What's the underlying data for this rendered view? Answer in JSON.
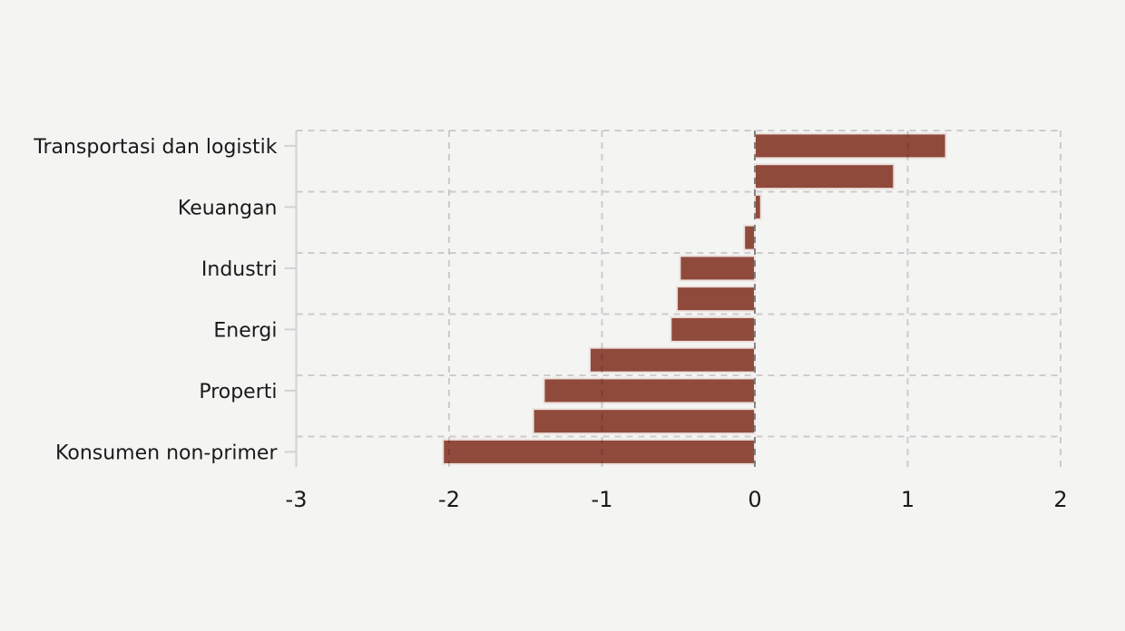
{
  "page": {
    "background_color": "#f4f4f3",
    "text_color": "#1a1a1a"
  },
  "chart_data": {
    "type": "bar",
    "orientation": "horizontal",
    "title": "",
    "xlabel": "",
    "ylabel": "",
    "xlim": [
      -3,
      2
    ],
    "x_ticks": [
      "-3",
      "-2",
      "-1",
      "0",
      "1",
      "2"
    ],
    "grid": true,
    "grid_style": "dashed",
    "zero_line": true,
    "legend": "none",
    "bar_color": "#904a3c",
    "bar_edge_color": "#ece1dd",
    "bars": [
      {
        "label": "Transportasi dan logistik",
        "value": 1.25
      },
      {
        "label": "",
        "value": 0.91
      },
      {
        "label": "Keuangan",
        "value": 0.04
      },
      {
        "label": "",
        "value": -0.07
      },
      {
        "label": "Industri",
        "value": -0.49
      },
      {
        "label": "",
        "value": -0.51
      },
      {
        "label": "Energi",
        "value": -0.55
      },
      {
        "label": "",
        "value": -1.08
      },
      {
        "label": "Properti",
        "value": -1.38
      },
      {
        "label": "",
        "value": -1.45
      },
      {
        "label": "Konsumen non-primer",
        "value": -2.04
      }
    ]
  }
}
